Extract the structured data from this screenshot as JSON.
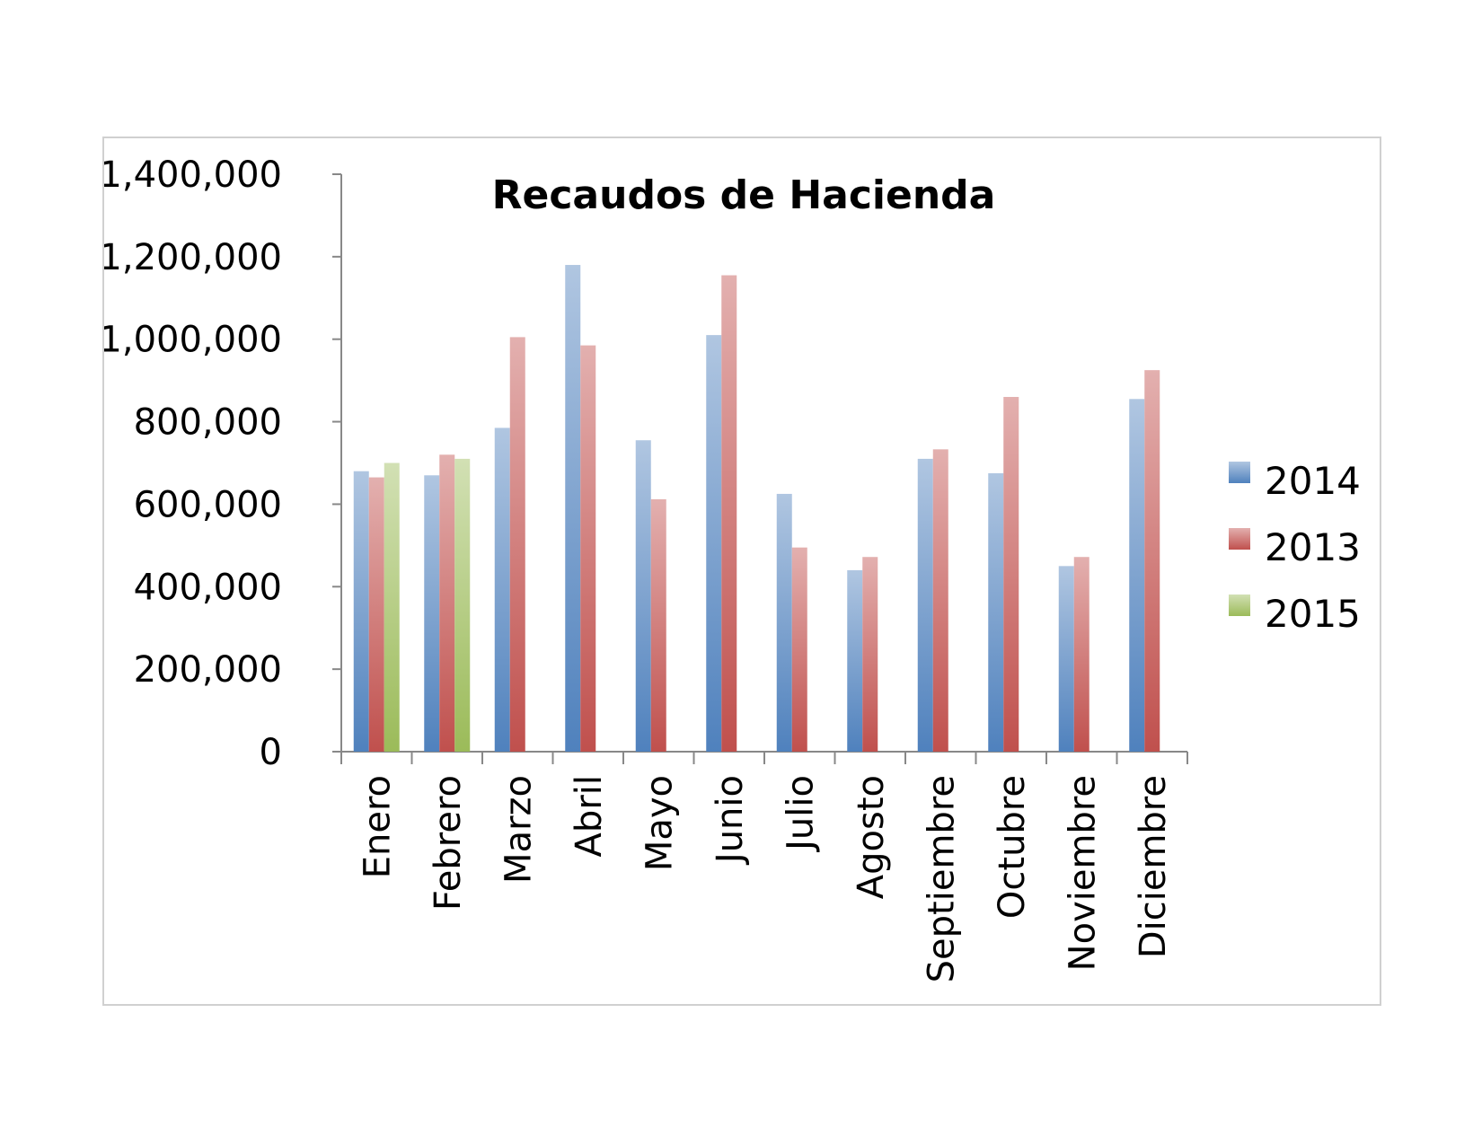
{
  "chart_data": {
    "type": "bar",
    "title": "Recaudos de Hacienda",
    "xlabel": "",
    "ylabel": "",
    "ylim": [
      0,
      1400000
    ],
    "yticks": [
      0,
      200000,
      400000,
      600000,
      800000,
      1000000,
      1200000,
      1400000
    ],
    "ytick_labels": [
      "0",
      "200,000",
      "400,000",
      "600,000",
      "800,000",
      "1,000,000",
      "1,200,000",
      "1,400,000"
    ],
    "categories": [
      "Enero",
      "Febrero",
      "Marzo",
      "Abril",
      "Mayo",
      "Junio",
      "Julio",
      "Agosto",
      "Septiembre",
      "Octubre",
      "Noviembre",
      "Diciembre"
    ],
    "series": [
      {
        "name": "2014",
        "color": "#4f81bd",
        "values": [
          680000,
          670000,
          785000,
          1180000,
          755000,
          1010000,
          625000,
          440000,
          710000,
          675000,
          450000,
          855000
        ]
      },
      {
        "name": "2013",
        "color": "#c0504d",
        "values": [
          665000,
          720000,
          1005000,
          985000,
          612000,
          1155000,
          495000,
          472000,
          733000,
          860000,
          472000,
          925000
        ]
      },
      {
        "name": "2015",
        "color": "#9bbb59",
        "values": [
          700000,
          710000,
          null,
          null,
          null,
          null,
          null,
          null,
          null,
          null,
          null,
          null
        ]
      }
    ],
    "legend": {
      "position": "right",
      "order": [
        "2014",
        "2013",
        "2015"
      ]
    },
    "grid": false
  }
}
